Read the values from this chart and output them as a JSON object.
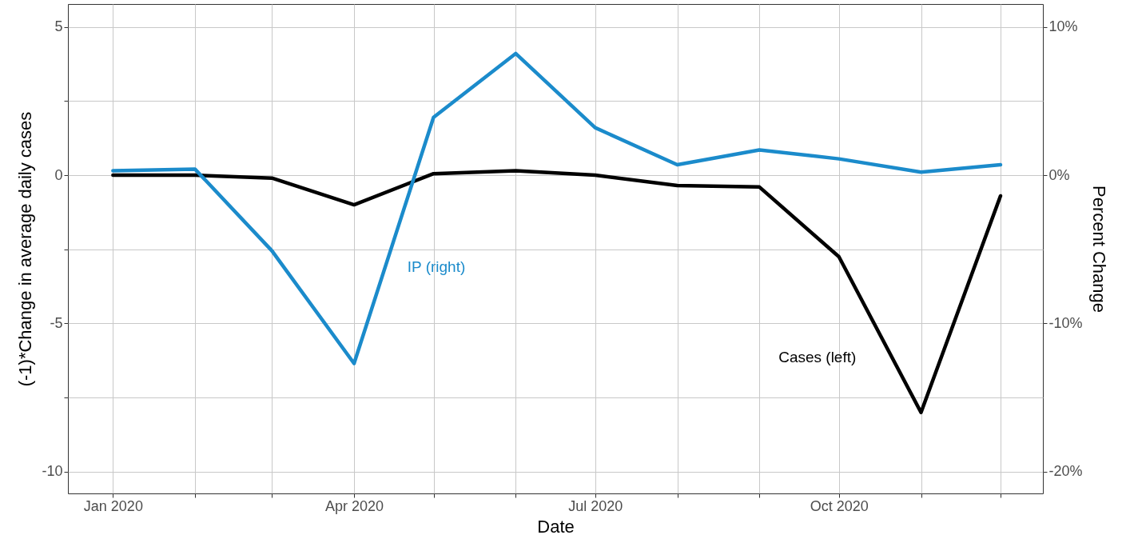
{
  "chart_data": {
    "type": "line",
    "xlabel": "Date",
    "ylabel": "(-1)*Change in average daily cases",
    "y2label": "Percent Change",
    "x": [
      "2020-01",
      "2020-02",
      "2020-03",
      "2020-04",
      "2020-05",
      "2020-06",
      "2020-07",
      "2020-08",
      "2020-09",
      "2020-10",
      "2020-11",
      "2020-12"
    ],
    "series": [
      {
        "name": "Cases (left)",
        "color": "#000000",
        "values": [
          0,
          0,
          -0.1,
          -1.0,
          0.05,
          0.15,
          0,
          -0.35,
          -0.4,
          -2.75,
          -8.0,
          -0.7
        ]
      },
      {
        "name": "IP (right)",
        "color": "#1b8bcb",
        "axis": "y2",
        "values": [
          0.3,
          0.4,
          -5.1,
          -12.7,
          3.9,
          8.2,
          3.2,
          0.7,
          1.7,
          1.1,
          0.2,
          0.7
        ]
      }
    ],
    "xlim": [
      "2019-12-15",
      "2020-12-17"
    ],
    "xticks": [
      {
        "value": "2020-01",
        "label": "Jan 2020"
      },
      {
        "value": "2020-02",
        "label": null
      },
      {
        "value": "2020-03",
        "label": null
      },
      {
        "value": "2020-04",
        "label": "Apr 2020"
      },
      {
        "value": "2020-05",
        "label": null
      },
      {
        "value": "2020-06",
        "label": null
      },
      {
        "value": "2020-07",
        "label": "Jul 2020"
      },
      {
        "value": "2020-08",
        "label": null
      },
      {
        "value": "2020-09",
        "label": null
      },
      {
        "value": "2020-10",
        "label": "Oct 2020"
      },
      {
        "value": "2020-11",
        "label": null
      },
      {
        "value": "2020-12",
        "label": null
      }
    ],
    "ylim": [
      -10.73,
      5.77
    ],
    "yticks": [
      -10,
      {
        "value": -7.5,
        "label": null
      },
      -5,
      {
        "value": -2.5,
        "label": null
      },
      0,
      {
        "value": 2.5,
        "label": null
      },
      5
    ],
    "y2lim": [
      -21.46,
      11.54
    ],
    "y2ticks": [
      {
        "value": -20,
        "label": "-20%"
      },
      {
        "value": -10,
        "label": "-10%"
      },
      {
        "value": 0,
        "label": "0%"
      },
      {
        "value": 10,
        "label": "10%"
      }
    ],
    "grid": true
  }
}
